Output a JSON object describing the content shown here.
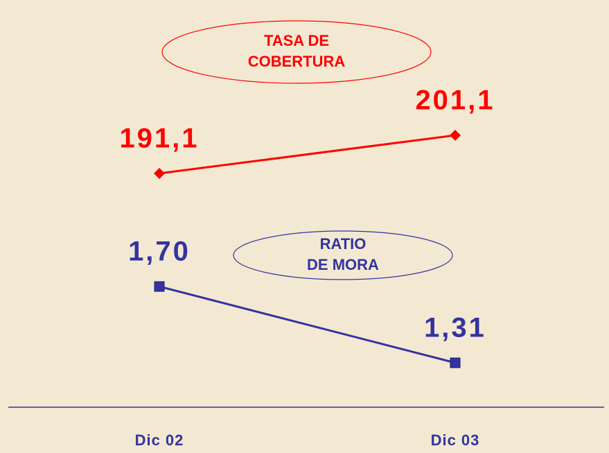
{
  "chart_data": {
    "type": "line",
    "categories": [
      "Dic 02",
      "Dic 03"
    ],
    "series": [
      {
        "name": "TASA DE COBERTURA",
        "color": "#ff0000",
        "values": [
          191.1,
          201.1
        ],
        "value_labels": [
          "191,1",
          "201,1"
        ],
        "marker": "diamond"
      },
      {
        "name": "RATIO DE MORA",
        "color": "#3333a0",
        "values": [
          1.7,
          1.31
        ],
        "value_labels": [
          "1,70",
          "1,31"
        ],
        "marker": "square"
      }
    ]
  }
}
